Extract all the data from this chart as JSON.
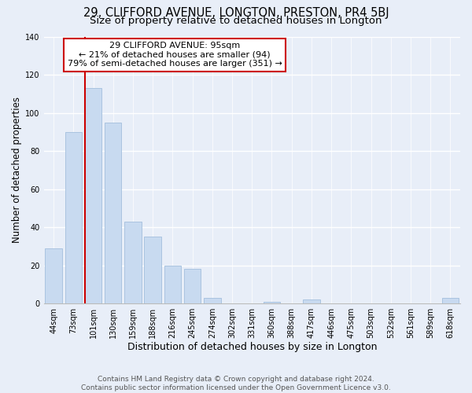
{
  "title": "29, CLIFFORD AVENUE, LONGTON, PRESTON, PR4 5BJ",
  "subtitle": "Size of property relative to detached houses in Longton",
  "xlabel": "Distribution of detached houses by size in Longton",
  "ylabel": "Number of detached properties",
  "bar_labels": [
    "44sqm",
    "73sqm",
    "101sqm",
    "130sqm",
    "159sqm",
    "188sqm",
    "216sqm",
    "245sqm",
    "274sqm",
    "302sqm",
    "331sqm",
    "360sqm",
    "388sqm",
    "417sqm",
    "446sqm",
    "475sqm",
    "503sqm",
    "532sqm",
    "561sqm",
    "589sqm",
    "618sqm"
  ],
  "bar_values": [
    29,
    90,
    113,
    95,
    43,
    35,
    20,
    18,
    3,
    0,
    0,
    1,
    0,
    2,
    0,
    0,
    0,
    0,
    0,
    0,
    3
  ],
  "bar_color": "#c8daf0",
  "bar_edge_color": "#aac4e0",
  "vline_color": "#cc0000",
  "annotation_title": "29 CLIFFORD AVENUE: 95sqm",
  "annotation_line1": "← 21% of detached houses are smaller (94)",
  "annotation_line2": "79% of semi-detached houses are larger (351) →",
  "annotation_box_facecolor": "#ffffff",
  "annotation_box_edgecolor": "#cc0000",
  "ylim": [
    0,
    140
  ],
  "yticks": [
    0,
    20,
    40,
    60,
    80,
    100,
    120,
    140
  ],
  "footer1": "Contains HM Land Registry data © Crown copyright and database right 2024.",
  "footer2": "Contains public sector information licensed under the Open Government Licence v3.0.",
  "fig_facecolor": "#e8eef8",
  "plot_facecolor": "#e8eef8",
  "grid_color": "#ffffff",
  "title_fontsize": 10.5,
  "subtitle_fontsize": 9.5,
  "xlabel_fontsize": 9,
  "ylabel_fontsize": 8.5,
  "tick_fontsize": 7,
  "annot_fontsize": 8,
  "footer_fontsize": 6.5
}
